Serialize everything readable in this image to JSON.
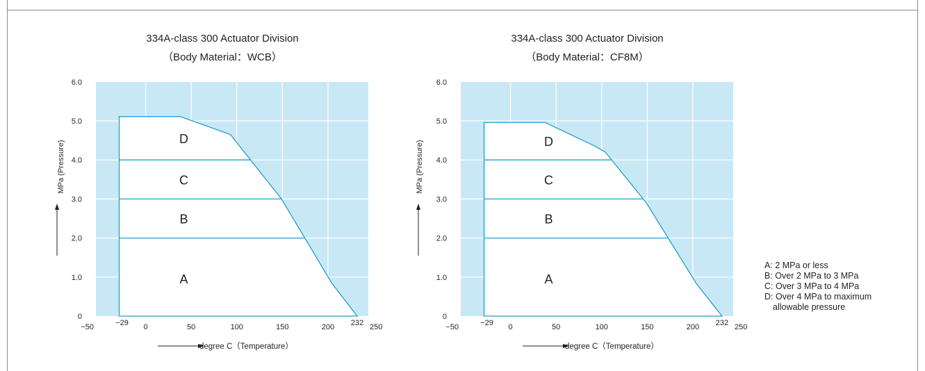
{
  "charts": [
    {
      "title_line1": "334A-class 300  Actuator Division",
      "title_line2": "（Body Material：WCB）",
      "ylabel": "MPa (Pressure)",
      "xlabel": "degree C（Temperature）"
    },
    {
      "title_line1": "334A-class 300  Actuator Division",
      "title_line2": "（Body Material：CF8M）",
      "ylabel": "MPa (Pressure)",
      "xlabel": "degree C（Temperature）"
    }
  ],
  "legend": {
    "a": "A: 2 MPa or less",
    "b": "B: Over 2 MPa to 3 MPa",
    "c": "C: Over 3 MPa to 4 MPa",
    "d_line1": "D: Over 4 MPa to maximum",
    "d_line2": "allowable pressure"
  },
  "colors": {
    "background": "#c9e8f5",
    "outline": "#1ea0cf",
    "gridline": "#ffffff",
    "text": "#231f20"
  },
  "chart_data": [
    {
      "type": "area",
      "title": "334A-class 300  Actuator Division（Body Material：WCB）",
      "xlabel": "degree C（Temperature）",
      "ylabel": "MPa (Pressure)",
      "xlim": [
        -50,
        250
      ],
      "ylim": [
        0,
        6
      ],
      "x_ticks": [
        "−50",
        "−29",
        "0",
        "50",
        "100",
        "150",
        "200",
        "232",
        "250"
      ],
      "y_ticks": [
        "0",
        "1.0",
        "2.0",
        "3.0",
        "4.0",
        "5.0",
        "6.0"
      ],
      "grid": true,
      "envelope": {
        "x": [
          -29,
          38,
          93,
          149,
          204,
          232
        ],
        "y": [
          5.11,
          5.11,
          4.65,
          3.0,
          0.85,
          0.0
        ]
      },
      "bands": [
        {
          "label": "A",
          "from": 0,
          "to": 2
        },
        {
          "label": "B",
          "from": 2,
          "to": 3
        },
        {
          "label": "C",
          "from": 3,
          "to": 4
        },
        {
          "label": "D",
          "from": 4,
          "to": 5.11
        }
      ]
    },
    {
      "type": "area",
      "title": "334A-class 300  Actuator Division（Body Material：CF8M）",
      "xlabel": "degree C（Temperature）",
      "ylabel": "MPa (Pressure)",
      "xlim": [
        -50,
        250
      ],
      "ylim": [
        0,
        6
      ],
      "x_ticks": [
        "−50",
        "−29",
        "0",
        "50",
        "100",
        "150",
        "200",
        "232",
        "250"
      ],
      "y_ticks": [
        "0",
        "1.0",
        "2.0",
        "3.0",
        "4.0",
        "5.0",
        "6.0"
      ],
      "grid": true,
      "envelope": {
        "x": [
          -29,
          38,
          93,
          104,
          149,
          204,
          232
        ],
        "y": [
          4.96,
          4.96,
          4.35,
          4.2,
          2.9,
          0.83,
          0.0
        ]
      },
      "bands": [
        {
          "label": "A",
          "from": 0,
          "to": 2
        },
        {
          "label": "B",
          "from": 2,
          "to": 3
        },
        {
          "label": "C",
          "from": 3,
          "to": 4
        },
        {
          "label": "D",
          "from": 4,
          "to": 4.96
        }
      ]
    }
  ]
}
